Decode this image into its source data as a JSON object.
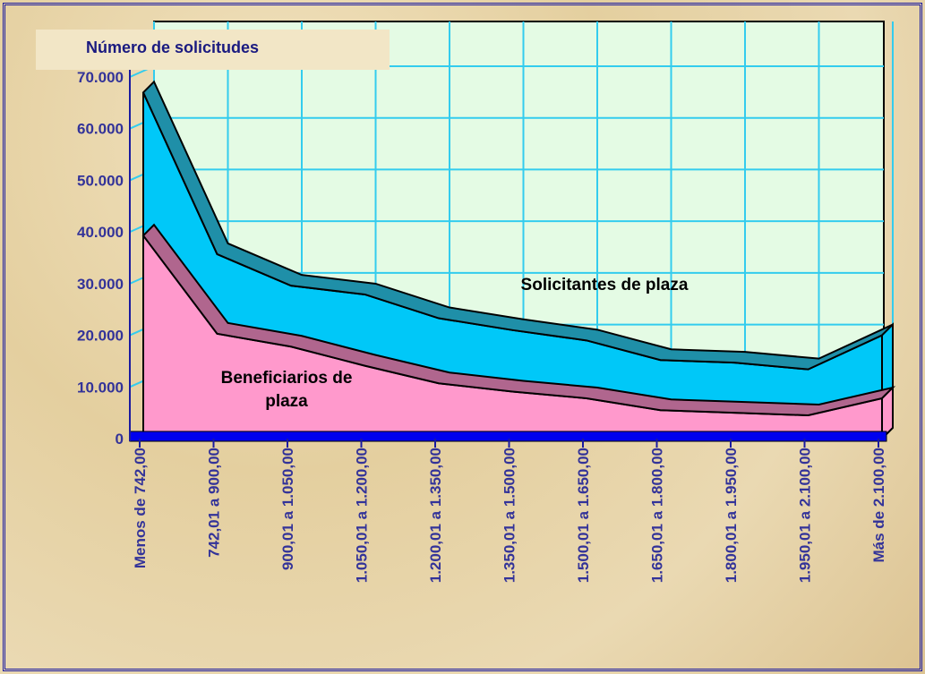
{
  "chart_data": {
    "type": "area3d",
    "y_label": "Número de solicitudes",
    "categories": [
      "Menos de 742,00",
      "742,01 a 900,00",
      "900,01 a 1.050,00",
      "1.050,01 a 1.200,00",
      "1.200,01 a 1.350,00",
      "1.350,01 a 1.500,00",
      "1.500,01 a 1.650,00",
      "1.650,01 a 1.800,00",
      "1.800,01 a 1.950,00",
      "1.950,01 a 2.100,00",
      "Más de 2.100,00"
    ],
    "series": [
      {
        "name": "Solicitantes de plaza",
        "color": "#00c8f8",
        "values": [
          67000,
          35700,
          29600,
          27900,
          23300,
          21000,
          19000,
          15200,
          14700,
          13400,
          20000
        ]
      },
      {
        "name": "Beneficiarios de plaza",
        "color": "#ff99cc",
        "values": [
          39300,
          20300,
          17800,
          14100,
          10700,
          9100,
          7800,
          5500,
          5000,
          4500,
          7800
        ]
      }
    ],
    "ylim": [
      0,
      70000
    ],
    "yticks": [
      0,
      {
        "value": 10000,
        "label": "10.000"
      },
      {
        "value": 20000,
        "label": "20.000"
      },
      {
        "value": 30000,
        "label": "30.000"
      },
      {
        "value": 40000,
        "label": "40.000"
      },
      {
        "value": 50000,
        "label": "50.000"
      },
      {
        "value": 60000,
        "label": "60.000"
      },
      {
        "value": 70000,
        "label": "70.000"
      }
    ],
    "grid": true
  }
}
